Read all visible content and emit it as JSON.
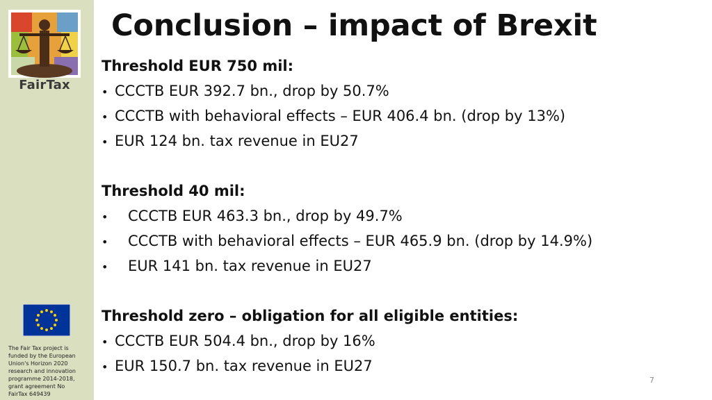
{
  "sidebar": {
    "logo_text": "FairTax",
    "funding_lines": [
      "The Fair Tax project is",
      "funded by the European",
      "Union's Horizon 2020",
      "research and innovation",
      "programme 2014-2018,",
      "grant agreement No",
      "FairTax 649439"
    ]
  },
  "slide": {
    "title": "Conclusion – impact of Brexit",
    "page_number": "7",
    "bullet_glyph": "•",
    "sections": [
      {
        "heading": "Threshold EUR 750 mil:",
        "items": [
          "CCCTB EUR 392.7 bn., drop by 50.7%",
          "CCCTB with behavioral effects – EUR 406.4 bn. (drop by 13%)",
          "EUR 124 bn. tax revenue in EU27"
        ]
      },
      {
        "heading": "Threshold 40 mil:",
        "items": [
          "CCCTB EUR 463.3 bn., drop by 49.7%",
          "CCCTB with behavioral effects – EUR 465.9 bn. (drop by 14.9%)",
          "EUR 141 bn. tax revenue in EU27"
        ]
      },
      {
        "heading": "Threshold zero – obligation for all eligible entities:",
        "items": [
          "CCCTB EUR 504.4 bn., drop by 16%",
          "EUR 150.7 bn. tax revenue in EU27"
        ]
      }
    ]
  },
  "colors": {
    "sidebar_bg": "#d9dfbf",
    "eu_blue": "#003399",
    "eu_gold": "#ffcc00"
  },
  "icons": {
    "logo": "fairtax-scales-logo",
    "flag": "eu-flag-icon"
  }
}
